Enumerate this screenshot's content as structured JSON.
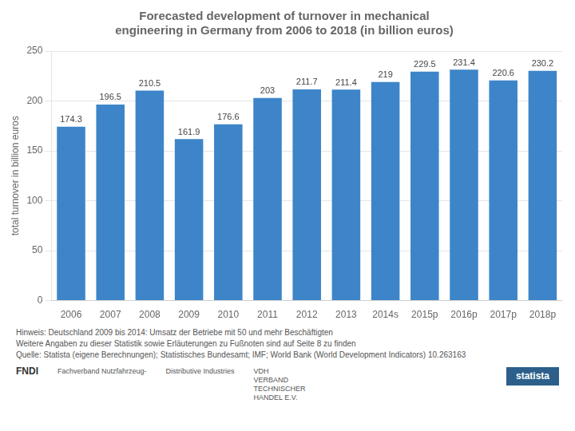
{
  "chart_data": {
    "type": "bar",
    "title": [
      "Forecasted development of turnover in mechanical",
      "engineering in Germany from 2006 to 2018 (in billion euros)"
    ],
    "y_label": "total turnover in billion euros",
    "categories": [
      "2006",
      "2007",
      "2008",
      "2009",
      "2010",
      "2011",
      "2012",
      "2013",
      "2014s",
      "2015p",
      "2016p",
      "2017p",
      "2018p"
    ],
    "values": [
      174.3,
      196.5,
      210.5,
      161.9,
      176.6,
      203,
      211.7,
      211.4,
      219,
      229.5,
      231.4,
      220.6,
      230.2
    ],
    "color": "#3d85c8",
    "ylim": [
      0,
      250
    ],
    "yticks": [
      0,
      50,
      100,
      150,
      200,
      250
    ],
    "grid": true,
    "data_labels": true,
    "annotations": [
      "Hinweis: Deutschland 2009 bis 2014: Umsatz der Betriebe mit 50 und mehr Beschäftigten",
      "Weitere Angaben zu dieser Statistik  sowie Erläuterungen zu Fußnoten sind auf Seite 8 zu finden",
      "Quelle: Statista (eigene Berechnungen); Statistisches Bundesamt; IMF; World Bank (World Development Indicators) 10.263163",
      "FNDI",
      "Fachverband Nutzfahrzeug-",
      "Distributive Industries",
      "VDH\nVERBAND\nTECHNISCHER\nHANDEL E.V.",
      "statista"
    ]
  }
}
